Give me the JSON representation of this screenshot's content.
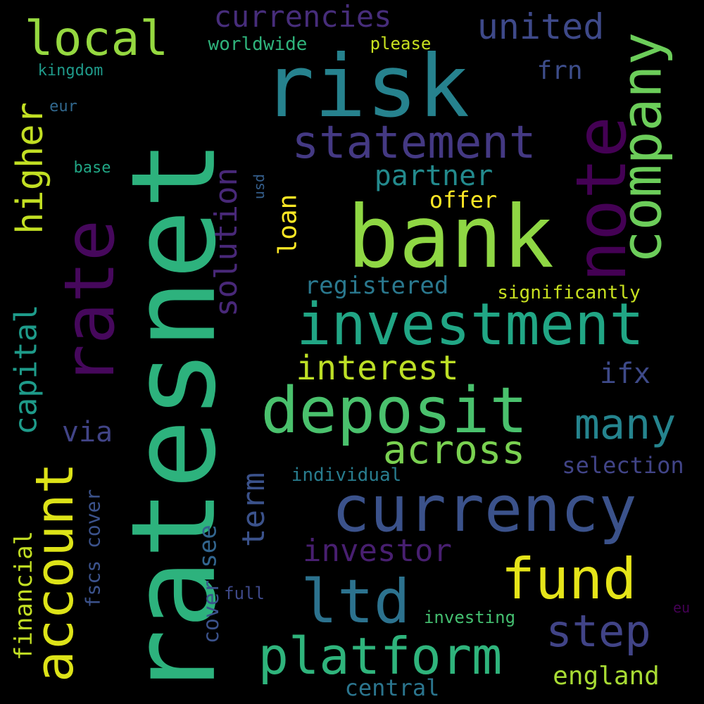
{
  "background": "#000000",
  "words": [
    {
      "text": "ratesnet",
      "color": "#2db27d",
      "orientation": "vertical"
    },
    {
      "text": "risk",
      "color": "#26828e",
      "orientation": "horizontal"
    },
    {
      "text": "bank",
      "color": "#8fd744",
      "orientation": "horizontal"
    },
    {
      "text": "rate",
      "color": "#46085c",
      "orientation": "vertical"
    },
    {
      "text": "note",
      "color": "#440154",
      "orientation": "vertical"
    },
    {
      "text": "company",
      "color": "#6ccd5a",
      "orientation": "vertical"
    },
    {
      "text": "currency",
      "color": "#3b528b",
      "orientation": "horizontal"
    },
    {
      "text": "investment",
      "color": "#21a685",
      "orientation": "horizontal"
    },
    {
      "text": "deposit",
      "color": "#4ac16d",
      "orientation": "horizontal"
    },
    {
      "text": "account",
      "color": "#dde318",
      "orientation": "vertical"
    },
    {
      "text": "platform",
      "color": "#2fb47c",
      "orientation": "horizontal"
    },
    {
      "text": "ltd",
      "color": "#2c728e",
      "orientation": "horizontal"
    },
    {
      "text": "fund",
      "color": "#e5e419",
      "orientation": "horizontal"
    },
    {
      "text": "statement",
      "color": "#443983",
      "orientation": "horizontal"
    },
    {
      "text": "local",
      "color": "#95d840",
      "orientation": "horizontal"
    },
    {
      "text": "many",
      "color": "#25848e",
      "orientation": "horizontal"
    },
    {
      "text": "step",
      "color": "#414487",
      "orientation": "horizontal"
    },
    {
      "text": "across",
      "color": "#7ad151",
      "orientation": "horizontal"
    },
    {
      "text": "higher",
      "color": "#c2df23",
      "orientation": "vertical"
    },
    {
      "text": "solution",
      "color": "#482878",
      "orientation": "vertical"
    },
    {
      "text": "capital",
      "color": "#1e9b8a",
      "orientation": "vertical"
    },
    {
      "text": "interest",
      "color": "#bddf26",
      "orientation": "horizontal"
    },
    {
      "text": "united",
      "color": "#3e4989",
      "orientation": "horizontal"
    },
    {
      "text": "currencies",
      "color": "#472d7b",
      "orientation": "horizontal"
    },
    {
      "text": "term",
      "color": "#3b528b",
      "orientation": "vertical"
    },
    {
      "text": "investor",
      "color": "#481f70",
      "orientation": "horizontal"
    },
    {
      "text": "partner",
      "color": "#238a8d",
      "orientation": "horizontal"
    },
    {
      "text": "financial",
      "color": "#c2df23",
      "orientation": "vertical"
    },
    {
      "text": "england",
      "color": "#a8db34",
      "orientation": "horizontal"
    },
    {
      "text": "cover",
      "color": "#3b528b",
      "orientation": "vertical"
    },
    {
      "text": "loan",
      "color": "#fde725",
      "orientation": "vertical"
    },
    {
      "text": "registered",
      "color": "#2a788e",
      "orientation": "horizontal"
    },
    {
      "text": "ifx",
      "color": "#3e4a89",
      "orientation": "horizontal"
    },
    {
      "text": "via",
      "color": "#414487",
      "orientation": "horizontal"
    },
    {
      "text": "fscs cover",
      "color": "#3b528b",
      "orientation": "vertical"
    },
    {
      "text": "see",
      "color": "#32658e",
      "orientation": "vertical"
    },
    {
      "text": "frn",
      "color": "#3d4d8a",
      "orientation": "horizontal"
    },
    {
      "text": "selection",
      "color": "#414487",
      "orientation": "horizontal"
    },
    {
      "text": "central",
      "color": "#2b758e",
      "orientation": "horizontal"
    },
    {
      "text": "offer",
      "color": "#fde725",
      "orientation": "horizontal"
    },
    {
      "text": "worldwide",
      "color": "#2fb47c",
      "orientation": "horizontal"
    },
    {
      "text": "significantly",
      "color": "#c8e020",
      "orientation": "horizontal"
    },
    {
      "text": "individual",
      "color": "#287c8e",
      "orientation": "horizontal"
    },
    {
      "text": "investing",
      "color": "#44bf70",
      "orientation": "horizontal"
    },
    {
      "text": "please",
      "color": "#c8e020",
      "orientation": "horizontal"
    },
    {
      "text": "full",
      "color": "#3e4989",
      "orientation": "horizontal"
    },
    {
      "text": "kingdom",
      "color": "#1f9a8a",
      "orientation": "horizontal"
    },
    {
      "text": "eur",
      "color": "#31688e",
      "orientation": "horizontal"
    },
    {
      "text": "base",
      "color": "#21a685",
      "orientation": "horizontal"
    },
    {
      "text": "usd",
      "color": "#355f8d",
      "orientation": "vertical"
    },
    {
      "text": "eu",
      "color": "#440154",
      "orientation": "horizontal"
    }
  ]
}
